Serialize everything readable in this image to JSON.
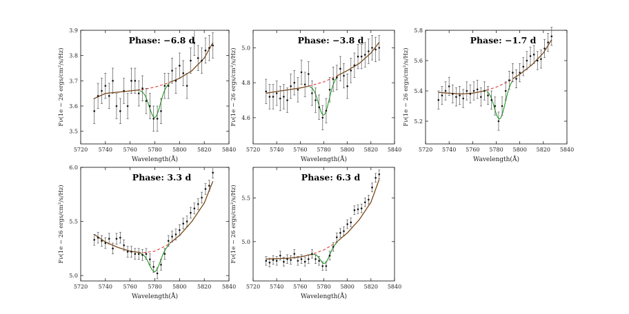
{
  "figure": {
    "description_free": true
  },
  "colors": {
    "data": "#111111",
    "error": "#555555",
    "fit": "#7a4a18",
    "continuum": "#e02020",
    "absorption": "#1a9a1a",
    "frame": "#000000"
  },
  "chart_data": [
    {
      "type": "scatter",
      "title": "Phase: −6.8 d",
      "xlabel": "Wavelength(Å)",
      "ylabel": "Fν(1e − 26 ergs/cm²/s/Hz)",
      "xlim": [
        5720,
        5840
      ],
      "ylim": [
        3.45,
        3.9
      ],
      "xticks": [
        5720,
        5740,
        5760,
        5780,
        5800,
        5820,
        5840
      ],
      "yticks": [
        3.5,
        3.6,
        3.7,
        3.8,
        3.9
      ],
      "ytick_labels": [
        "3.5",
        "3.6",
        "3.7",
        "3.8",
        "3.9"
      ],
      "x": [
        5731,
        5734,
        5737,
        5740,
        5743,
        5746,
        5749,
        5752,
        5755,
        5758,
        5761,
        5764,
        5767,
        5770,
        5773,
        5776,
        5779,
        5782,
        5785,
        5788,
        5791,
        5794,
        5797,
        5800,
        5803,
        5806,
        5809,
        5812,
        5815,
        5818,
        5821,
        5824,
        5827
      ],
      "y": [
        3.58,
        3.64,
        3.66,
        3.68,
        3.64,
        3.7,
        3.6,
        3.58,
        3.66,
        3.6,
        3.7,
        3.7,
        3.65,
        3.67,
        3.62,
        3.6,
        3.55,
        3.55,
        3.58,
        3.68,
        3.68,
        3.74,
        3.7,
        3.76,
        3.73,
        3.68,
        3.78,
        3.85,
        3.79,
        3.78,
        3.82,
        3.83,
        3.84
      ],
      "err": 0.05,
      "continuum": [
        [
          5731,
          3.63
        ],
        [
          5740,
          3.65
        ],
        [
          5750,
          3.655
        ],
        [
          5760,
          3.66
        ],
        [
          5770,
          3.665
        ],
        [
          5780,
          3.675
        ],
        [
          5790,
          3.69
        ],
        [
          5800,
          3.71
        ],
        [
          5810,
          3.74
        ],
        [
          5820,
          3.79
        ],
        [
          5828,
          3.86
        ]
      ],
      "feature": {
        "center": 5780,
        "depth": 0.12,
        "width": 4.5,
        "start": 5768,
        "end": 5792
      }
    },
    {
      "type": "scatter",
      "title": "Phase: −3.8 d",
      "xlabel": "Wavelength(Å)",
      "ylabel": "Fν(1e − 26 ergs/cm²/s/Hz)",
      "xlim": [
        5720,
        5840
      ],
      "ylim": [
        4.45,
        5.1
      ],
      "xticks": [
        5720,
        5740,
        5760,
        5780,
        5800,
        5820,
        5840
      ],
      "yticks": [
        4.6,
        4.8,
        5.0
      ],
      "ytick_labels": [
        "4.6",
        "4.8",
        "5.0"
      ],
      "x": [
        5731,
        5734,
        5737,
        5740,
        5743,
        5746,
        5749,
        5752,
        5755,
        5758,
        5761,
        5764,
        5767,
        5770,
        5773,
        5776,
        5779,
        5782,
        5785,
        5788,
        5791,
        5794,
        5797,
        5800,
        5803,
        5806,
        5809,
        5812,
        5815,
        5818,
        5821,
        5824,
        5827
      ],
      "y": [
        4.75,
        4.72,
        4.72,
        4.74,
        4.71,
        4.72,
        4.7,
        4.78,
        4.8,
        4.76,
        4.86,
        4.79,
        4.85,
        4.74,
        4.7,
        4.66,
        4.6,
        4.64,
        4.76,
        4.82,
        4.83,
        4.88,
        4.84,
        4.78,
        4.87,
        4.9,
        4.95,
        4.95,
        4.96,
        4.98,
        5.0,
        4.99,
        5.0
      ],
      "err": 0.07,
      "continuum": [
        [
          5731,
          4.74
        ],
        [
          5740,
          4.75
        ],
        [
          5750,
          4.76
        ],
        [
          5760,
          4.77
        ],
        [
          5770,
          4.785
        ],
        [
          5780,
          4.805
        ],
        [
          5790,
          4.835
        ],
        [
          5800,
          4.87
        ],
        [
          5810,
          4.91
        ],
        [
          5820,
          4.97
        ],
        [
          5828,
          5.04
        ]
      ],
      "feature": {
        "center": 5780,
        "depth": 0.19,
        "width": 4.5,
        "start": 5768,
        "end": 5792
      }
    },
    {
      "type": "scatter",
      "title": "Phase: −1.7 d",
      "xlabel": "Wavelength(Å)",
      "ylabel": "Fν(1e − 26 ergs/cm²/s/Hz)",
      "xlim": [
        5720,
        5840
      ],
      "ylim": [
        5.05,
        5.8
      ],
      "xticks": [
        5720,
        5740,
        5760,
        5780,
        5800,
        5820,
        5840
      ],
      "yticks": [
        5.2,
        5.4,
        5.6,
        5.8
      ],
      "ytick_labels": [
        "5.2",
        "5.4",
        "5.6",
        "5.8"
      ],
      "x": [
        5731,
        5734,
        5737,
        5740,
        5743,
        5746,
        5749,
        5752,
        5755,
        5758,
        5761,
        5764,
        5767,
        5770,
        5773,
        5776,
        5779,
        5782,
        5785,
        5788,
        5791,
        5794,
        5797,
        5800,
        5803,
        5806,
        5809,
        5812,
        5815,
        5818,
        5821,
        5824,
        5827
      ],
      "y": [
        5.34,
        5.37,
        5.4,
        5.43,
        5.38,
        5.36,
        5.37,
        5.35,
        5.4,
        5.38,
        5.4,
        5.41,
        5.36,
        5.4,
        5.37,
        5.34,
        5.3,
        5.2,
        5.3,
        5.4,
        5.47,
        5.52,
        5.48,
        5.52,
        5.56,
        5.6,
        5.63,
        5.64,
        5.6,
        5.61,
        5.68,
        5.72,
        5.76
      ],
      "err": 0.06,
      "continuum": [
        [
          5731,
          5.39
        ],
        [
          5740,
          5.385
        ],
        [
          5750,
          5.38
        ],
        [
          5760,
          5.385
        ],
        [
          5770,
          5.4
        ],
        [
          5780,
          5.425
        ],
        [
          5790,
          5.46
        ],
        [
          5800,
          5.51
        ],
        [
          5810,
          5.57
        ],
        [
          5820,
          5.65
        ],
        [
          5828,
          5.75
        ]
      ],
      "feature": {
        "center": 5783,
        "depth": 0.22,
        "width": 4.5,
        "start": 5772,
        "end": 5794
      }
    },
    {
      "type": "scatter",
      "title": "Phase: 3.3 d",
      "xlabel": "Wavelength(Å)",
      "ylabel": "Fν(1e − 26 ergs/cm²/s/Hz)",
      "xlim": [
        5720,
        5840
      ],
      "ylim": [
        4.95,
        6.0
      ],
      "xticks": [
        5720,
        5740,
        5760,
        5780,
        5800,
        5820,
        5840
      ],
      "yticks": [
        5.0,
        5.5,
        6.0
      ],
      "ytick_labels": [
        "5.0",
        "5.5",
        "6.0"
      ],
      "x": [
        5731,
        5734,
        5737,
        5740,
        5743,
        5746,
        5749,
        5752,
        5755,
        5758,
        5761,
        5764,
        5767,
        5770,
        5773,
        5776,
        5779,
        5782,
        5785,
        5788,
        5791,
        5794,
        5797,
        5800,
        5803,
        5806,
        5809,
        5812,
        5815,
        5818,
        5821,
        5824,
        5827
      ],
      "y": [
        5.33,
        5.35,
        5.32,
        5.3,
        5.34,
        5.25,
        5.34,
        5.35,
        5.28,
        5.22,
        5.22,
        5.2,
        5.2,
        5.19,
        5.2,
        5.15,
        5.08,
        5.02,
        5.1,
        5.2,
        5.32,
        5.36,
        5.38,
        5.42,
        5.48,
        5.5,
        5.58,
        5.62,
        5.66,
        5.72,
        5.8,
        5.83,
        5.95
      ],
      "err": 0.05,
      "continuum": [
        [
          5731,
          5.38
        ],
        [
          5740,
          5.31
        ],
        [
          5750,
          5.26
        ],
        [
          5760,
          5.225
        ],
        [
          5770,
          5.21
        ],
        [
          5780,
          5.225
        ],
        [
          5790,
          5.28
        ],
        [
          5800,
          5.37
        ],
        [
          5810,
          5.5
        ],
        [
          5820,
          5.67
        ],
        [
          5828,
          5.9
        ]
      ],
      "feature": {
        "center": 5780,
        "depth": 0.19,
        "width": 4.5,
        "start": 5768,
        "end": 5792
      }
    },
    {
      "type": "scatter",
      "title": "Phase: 6.3 d",
      "xlabel": "Wavelength(Å)",
      "ylabel": "Fν(1e − 26 ergs/cm²/s/Hz)",
      "xlim": [
        5720,
        5840
      ],
      "ylim": [
        4.55,
        5.85
      ],
      "xticks": [
        5720,
        5740,
        5760,
        5780,
        5800,
        5820,
        5840
      ],
      "yticks": [
        5.0,
        5.5
      ],
      "ytick_labels": [
        "5.0",
        "5.5"
      ],
      "x": [
        5731,
        5734,
        5737,
        5740,
        5743,
        5746,
        5749,
        5752,
        5755,
        5758,
        5761,
        5764,
        5767,
        5770,
        5773,
        5776,
        5779,
        5782,
        5785,
        5788,
        5791,
        5794,
        5797,
        5800,
        5803,
        5806,
        5809,
        5812,
        5815,
        5818,
        5821,
        5824,
        5827
      ],
      "y": [
        4.78,
        4.76,
        4.79,
        4.78,
        4.84,
        4.77,
        4.8,
        4.79,
        4.86,
        4.78,
        4.8,
        4.77,
        4.8,
        4.86,
        4.8,
        4.78,
        4.72,
        4.72,
        4.84,
        4.94,
        5.05,
        5.1,
        5.12,
        5.2,
        5.22,
        5.36,
        5.37,
        5.38,
        5.45,
        5.48,
        5.62,
        5.73,
        5.77
      ],
      "err": 0.05,
      "continuum": [
        [
          5731,
          4.8
        ],
        [
          5740,
          4.805
        ],
        [
          5750,
          4.81
        ],
        [
          5760,
          4.825
        ],
        [
          5770,
          4.855
        ],
        [
          5780,
          4.905
        ],
        [
          5790,
          4.985
        ],
        [
          5800,
          5.1
        ],
        [
          5810,
          5.25
        ],
        [
          5820,
          5.45
        ],
        [
          5828,
          5.75
        ]
      ],
      "feature": {
        "center": 5781,
        "depth": 0.16,
        "width": 4.0,
        "start": 5770,
        "end": 5792
      }
    }
  ]
}
